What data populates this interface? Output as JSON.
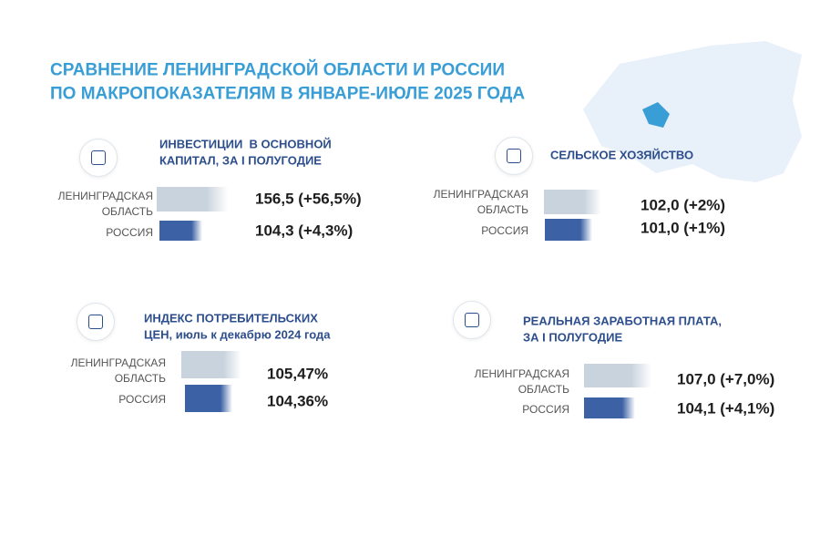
{
  "title": [
    "СРАВНЕНИЕ ЛЕНИНГРАДСКОЙ ОБЛАСТИ И РОССИИ",
    "ПО МАКРОПОКАЗАТЕЛЯМ В ЯНВАРЕ-ИЮЛЕ 2025 ГОДА"
  ],
  "panels": [
    {
      "title": [
        "ИНВЕСТИЦИИ  В ОСНОВНОЙ",
        "КАПИТАЛ, ЗА I ПОЛУГОДИЕ"
      ],
      "rows": [
        {
          "label": [
            "ЛЕНИНГРАДСКАЯ",
            "ОБЛАСТЬ"
          ],
          "value": "156,5 (+56,5%)"
        },
        {
          "label": [
            "РОССИЯ"
          ],
          "value": "104,3 (+4,3%)"
        }
      ]
    },
    {
      "title": [
        "СЕЛЬСКОЕ ХОЗЯЙСТВО"
      ],
      "rows": [
        {
          "label": [
            "ЛЕНИНГРАДСКАЯ",
            "ОБЛАСТЬ"
          ],
          "value": "102,0 (+2%)"
        },
        {
          "label": [
            "РОССИЯ"
          ],
          "value": "101,0 (+1%)"
        }
      ]
    },
    {
      "title": [
        "ИНДЕКС ПОТРЕБИТЕЛЬСКИХ",
        "ЦЕН, июль к декабрю 2024 года"
      ],
      "rows": [
        {
          "label": [
            "ЛЕНИНГРАДСКАЯ",
            "ОБЛАСТЬ"
          ],
          "value": "105,47%"
        },
        {
          "label": [
            "РОССИЯ"
          ],
          "value": "104,36%"
        }
      ]
    },
    {
      "title": [
        "РЕАЛЬНАЯ ЗАРАБОТНАЯ ПЛАТА,",
        "ЗА I ПОЛУГОДИЕ"
      ],
      "rows": [
        {
          "label": [
            "ЛЕНИНГРАДСКАЯ",
            "ОБЛАСТЬ"
          ],
          "value": "107,0 (+7,0%)"
        },
        {
          "label": [
            "РОССИЯ"
          ],
          "value": "104,1 (+4,1%)"
        }
      ]
    }
  ]
}
